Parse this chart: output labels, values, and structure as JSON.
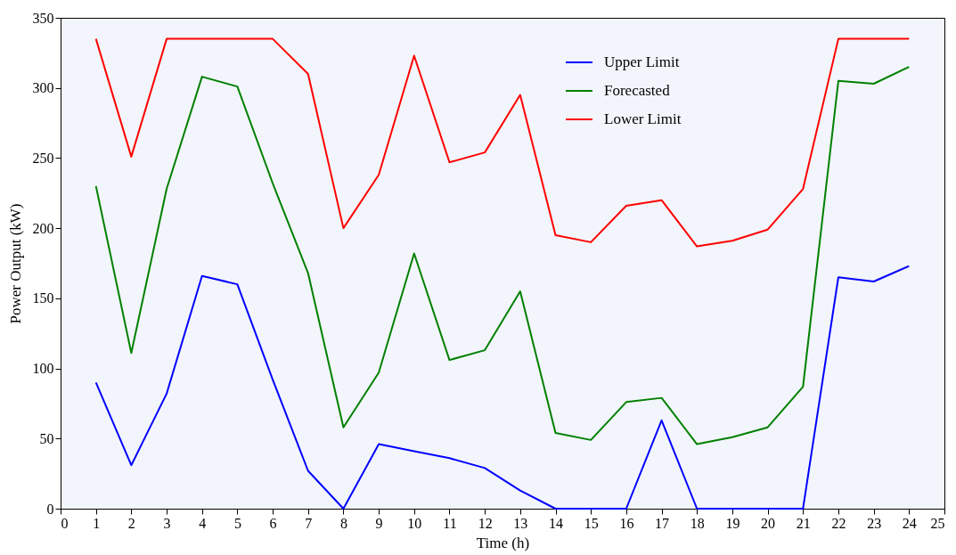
{
  "chart_data": {
    "type": "line",
    "xlabel": "Time (h)",
    "ylabel": "Power Output (kW)",
    "x": [
      1,
      2,
      3,
      4,
      5,
      6,
      7,
      8,
      9,
      10,
      11,
      12,
      13,
      14,
      15,
      16,
      17,
      18,
      19,
      20,
      21,
      22,
      23,
      24
    ],
    "series": [
      {
        "name": "Upper Limit",
        "color": "#0000ff",
        "values": [
          90,
          31,
          82,
          166,
          160,
          92,
          27,
          0,
          46,
          41,
          36,
          29,
          13,
          0,
          0,
          0,
          63,
          0,
          0,
          0,
          0,
          165,
          162,
          173
        ]
      },
      {
        "name": "Forecasted",
        "color": "#008000",
        "values": [
          230,
          111,
          228,
          308,
          301,
          232,
          168,
          58,
          97,
          182,
          106,
          113,
          155,
          54,
          49,
          76,
          79,
          46,
          51,
          58,
          87,
          305,
          303,
          315
        ]
      },
      {
        "name": "Lower Limit",
        "color": "#ff0000",
        "values": [
          335,
          251,
          335,
          335,
          335,
          335,
          310,
          200,
          238,
          323,
          247,
          254,
          295,
          195,
          190,
          216,
          220,
          187,
          191,
          199,
          228,
          335,
          335,
          335
        ]
      }
    ],
    "xlim": [
      0,
      25
    ],
    "xticks": [
      0,
      1,
      2,
      3,
      4,
      5,
      6,
      7,
      8,
      9,
      10,
      11,
      12,
      13,
      14,
      15,
      16,
      17,
      18,
      19,
      20,
      21,
      22,
      23,
      24,
      25
    ],
    "ylim": [
      0,
      350
    ],
    "yticks": [
      0,
      50,
      100,
      150,
      200,
      250,
      300,
      350
    ],
    "legend": "top right",
    "grid": false,
    "marker": "none",
    "line_style": "solid"
  }
}
